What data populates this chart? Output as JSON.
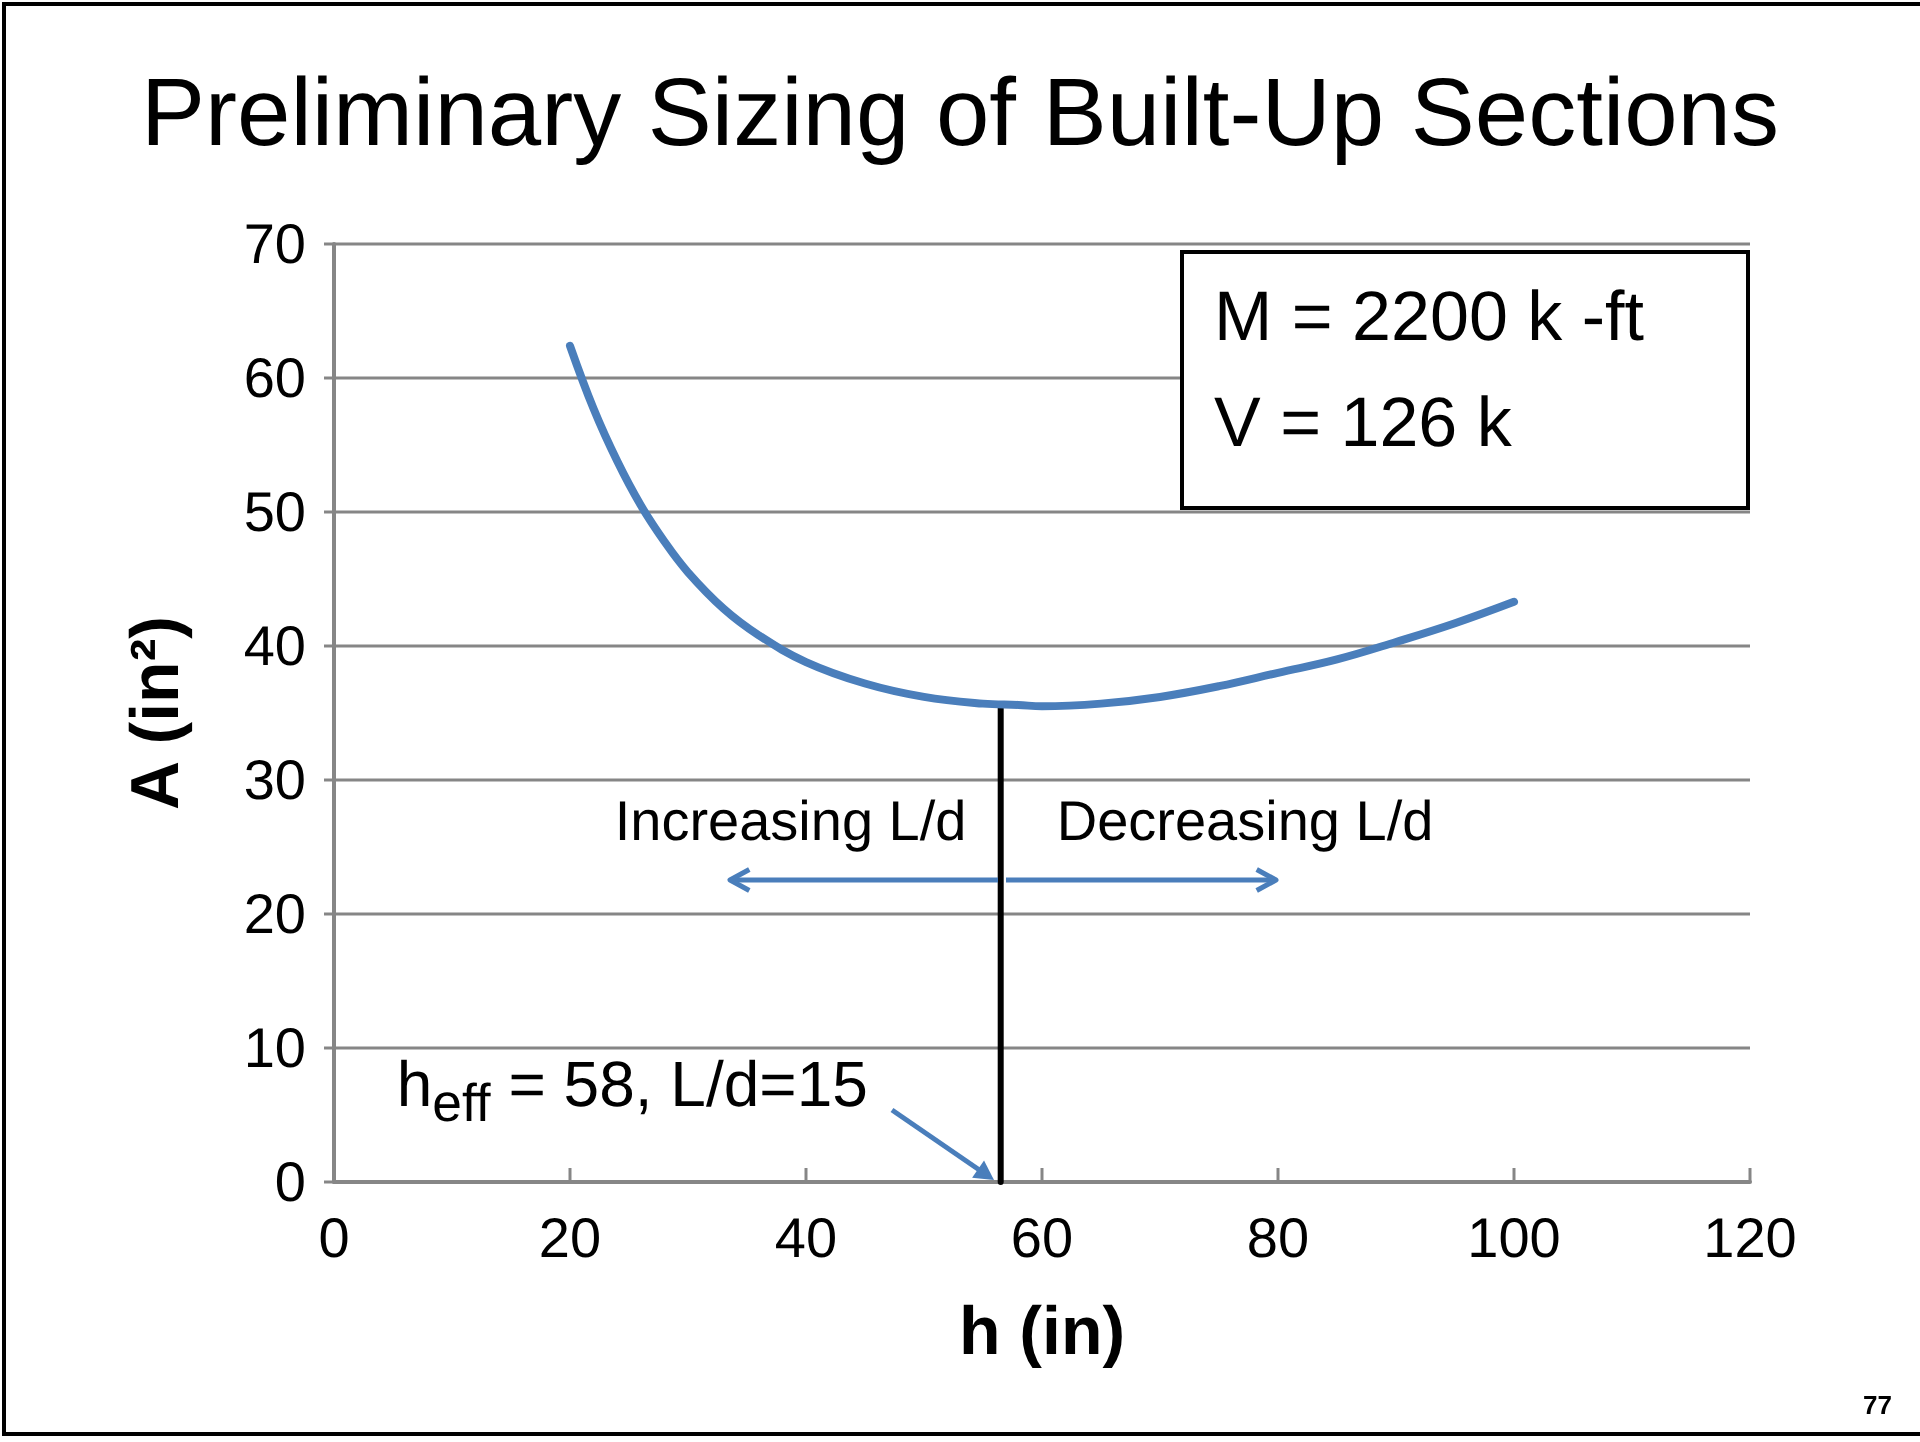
{
  "chart_data": {
    "type": "line",
    "title": "Preliminary Sizing of Built-Up Sections",
    "xlabel": "h (in)",
    "ylabel": "A (in²)",
    "series": [
      {
        "color": "#4a7ebb",
        "x": [
          20,
          22,
          24,
          26,
          28,
          30,
          33,
          36,
          40,
          45,
          50,
          55,
          58,
          60,
          65,
          70,
          75,
          80,
          85,
          90,
          95,
          100
        ],
        "values": [
          62.4,
          57.7,
          53.8,
          50.5,
          47.8,
          45.5,
          42.8,
          40.8,
          38.8,
          37.2,
          36.2,
          35.7,
          35.6,
          35.5,
          35.7,
          36.2,
          37.0,
          38.0,
          39.0,
          40.3,
          41.7,
          43.3
        ]
      },
      {
        "type": "line",
        "color": "#000000",
        "x": [
          56.5,
          56.5
        ],
        "values": [
          0,
          35.6
        ]
      }
    ],
    "xlim": [
      0,
      120
    ],
    "xticks": [
      0,
      20,
      40,
      60,
      80,
      100,
      120
    ],
    "ylim": [
      0,
      70
    ],
    "yticks": [
      0,
      10,
      20,
      30,
      40,
      50,
      60,
      70
    ],
    "grid": "y",
    "marker": "none",
    "line_style": "solid",
    "annotations": [
      "M = 2200 k -ft",
      "V = 126 k",
      "Increasing L/d",
      "Decreasing L/d",
      {
        "text": "h$_{eff}$ = 58, L/d=15",
        "x": 56.5,
        "y": 0
      },
      "77"
    ]
  }
}
